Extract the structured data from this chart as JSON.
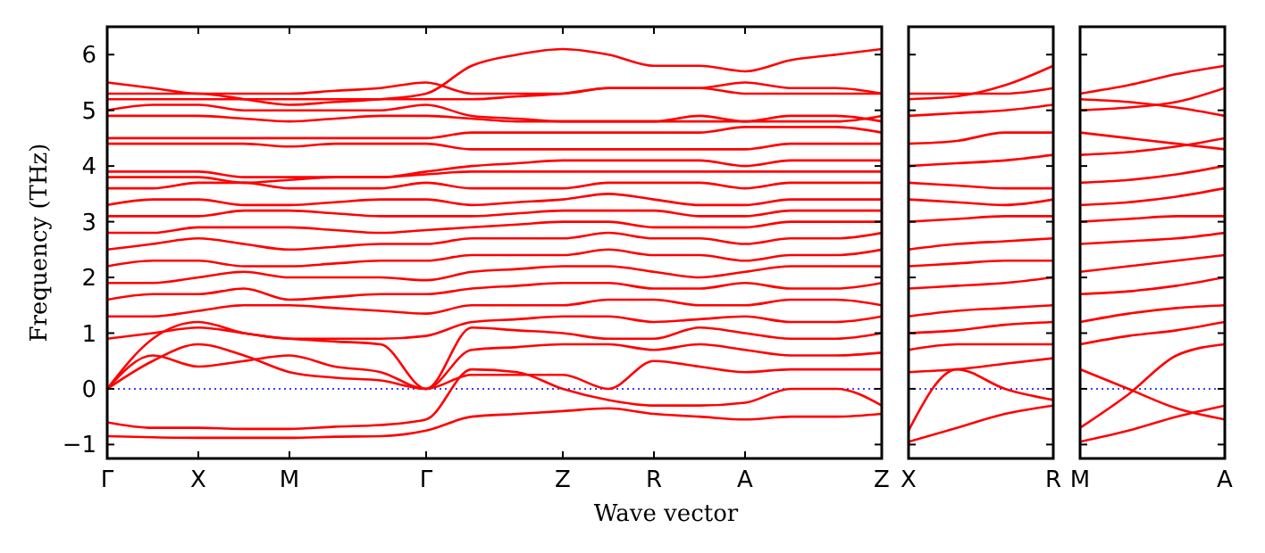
{
  "chart_data": [
    {
      "type": "line",
      "ylabel": "Frequency (THz)",
      "xlabel": "Wave vector",
      "ylim": [
        -1.25,
        6.5
      ],
      "categories": [
        "Γ",
        null,
        "X",
        null,
        "M",
        null,
        null,
        "Γ",
        null,
        null,
        "Z",
        null,
        "R",
        null,
        "A",
        null,
        null,
        "Z"
      ],
      "yticks": [
        {
          "value": -1,
          "label": "−1"
        },
        0,
        1,
        2,
        3,
        4,
        5,
        6
      ],
      "ref_lines": [
        {
          "axis": "y",
          "value": 0,
          "color": "#0000ff",
          "line_style": "dotted"
        }
      ],
      "series": [
        {
          "color": "#ff0000",
          "values": [
            -0.85,
            -0.87,
            -0.88,
            -0.88,
            -0.88,
            -0.86,
            -0.85,
            -0.75,
            -0.5,
            -0.45,
            -0.4,
            -0.35,
            -0.45,
            -0.5,
            -0.55,
            -0.5,
            -0.5,
            -0.45
          ]
        },
        {
          "color": "#ff0000",
          "values": [
            -0.6,
            -0.7,
            -0.7,
            -0.72,
            -0.72,
            -0.68,
            -0.65,
            -0.55,
            0.35,
            0.3,
            0,
            -0.2,
            -0.3,
            -0.3,
            -0.25,
            0,
            0,
            -0.3
          ]
        },
        {
          "color": "#ff0000",
          "values": [
            0,
            0.5,
            0.8,
            0.6,
            0.3,
            0.2,
            0.15,
            0,
            0.25,
            0.25,
            0.25,
            0,
            0.5,
            0.4,
            0.3,
            0.35,
            0.35,
            0.35
          ]
        },
        {
          "color": "#ff0000",
          "values": [
            0,
            0.6,
            0.4,
            0.5,
            0.6,
            0.4,
            0.3,
            0,
            0.7,
            0.75,
            0.8,
            0.8,
            0.7,
            0.8,
            0.7,
            0.6,
            0.6,
            0.65
          ]
        },
        {
          "color": "#ff0000",
          "values": [
            0,
            0.9,
            1.2,
            1,
            0.9,
            0.85,
            0.8,
            0,
            1.1,
            1.05,
            1,
            0.9,
            0.9,
            1.1,
            1,
            0.9,
            0.9,
            1
          ]
        },
        {
          "color": "#ff0000",
          "values": [
            0.9,
            1,
            1.1,
            1,
            0.9,
            0.9,
            0.9,
            0.95,
            1.2,
            1.25,
            1.3,
            1.3,
            1.2,
            1.25,
            1.3,
            1.2,
            1.2,
            1.3
          ]
        },
        {
          "color": "#ff0000",
          "values": [
            1.3,
            1.3,
            1.4,
            1.5,
            1.5,
            1.45,
            1.4,
            1.35,
            1.5,
            1.5,
            1.5,
            1.6,
            1.6,
            1.5,
            1.5,
            1.6,
            1.6,
            1.5
          ]
        },
        {
          "color": "#ff0000",
          "values": [
            1.6,
            1.7,
            1.7,
            1.8,
            1.6,
            1.65,
            1.7,
            1.7,
            1.8,
            1.85,
            1.9,
            1.9,
            1.8,
            1.8,
            1.9,
            1.8,
            1.8,
            1.9
          ]
        },
        {
          "color": "#ff0000",
          "values": [
            1.9,
            1.9,
            2,
            2.1,
            2,
            2,
            2,
            1.95,
            2.1,
            2.15,
            2.2,
            2.2,
            2.1,
            2,
            2.1,
            2.2,
            2.2,
            2.2
          ]
        },
        {
          "color": "#ff0000",
          "values": [
            2.2,
            2.3,
            2.3,
            2.2,
            2.2,
            2.25,
            2.3,
            2.3,
            2.4,
            2.4,
            2.4,
            2.5,
            2.4,
            2.4,
            2.3,
            2.4,
            2.4,
            2.5
          ]
        },
        {
          "color": "#ff0000",
          "values": [
            2.5,
            2.6,
            2.7,
            2.6,
            2.5,
            2.55,
            2.6,
            2.6,
            2.7,
            2.7,
            2.7,
            2.8,
            2.7,
            2.7,
            2.6,
            2.7,
            2.7,
            2.8
          ]
        },
        {
          "color": "#ff0000",
          "values": [
            2.8,
            2.8,
            2.9,
            2.9,
            2.9,
            2.85,
            2.8,
            2.85,
            2.9,
            2.95,
            3,
            3,
            2.9,
            2.9,
            2.9,
            3,
            3,
            3
          ]
        },
        {
          "color": "#ff0000",
          "values": [
            3.1,
            3.1,
            3.1,
            3.2,
            3.2,
            3.15,
            3.1,
            3.1,
            3.1,
            3.15,
            3.2,
            3.2,
            3.2,
            3.1,
            3.1,
            3.2,
            3.2,
            3.2
          ]
        },
        {
          "color": "#ff0000",
          "values": [
            3.3,
            3.4,
            3.4,
            3.3,
            3.3,
            3.35,
            3.4,
            3.4,
            3.3,
            3.35,
            3.4,
            3.5,
            3.4,
            3.3,
            3.3,
            3.4,
            3.4,
            3.4
          ]
        },
        {
          "color": "#ff0000",
          "values": [
            3.6,
            3.6,
            3.7,
            3.7,
            3.6,
            3.6,
            3.6,
            3.7,
            3.6,
            3.6,
            3.6,
            3.7,
            3.7,
            3.7,
            3.6,
            3.7,
            3.7,
            3.7
          ]
        },
        {
          "color": "#ff0000",
          "values": [
            3.8,
            3.8,
            3.8,
            3.7,
            3.75,
            3.8,
            3.8,
            3.85,
            3.9,
            3.9,
            3.9,
            3.9,
            3.9,
            3.9,
            3.9,
            3.9,
            3.9,
            3.9
          ]
        },
        {
          "color": "#ff0000",
          "values": [
            3.9,
            3.9,
            3.9,
            3.8,
            3.8,
            3.8,
            3.8,
            3.9,
            4,
            4.05,
            4.1,
            4.1,
            4.1,
            4.1,
            4,
            4.1,
            4.1,
            4.1
          ]
        },
        {
          "color": "#ff0000",
          "values": [
            4.4,
            4.4,
            4.4,
            4.4,
            4.35,
            4.4,
            4.4,
            4.4,
            4.3,
            4.3,
            4.3,
            4.3,
            4.3,
            4.3,
            4.3,
            4.4,
            4.4,
            4.4
          ]
        },
        {
          "color": "#ff0000",
          "values": [
            4.5,
            4.5,
            4.5,
            4.5,
            4.5,
            4.5,
            4.5,
            4.5,
            4.6,
            4.6,
            4.6,
            4.6,
            4.6,
            4.6,
            4.7,
            4.7,
            4.7,
            4.6
          ]
        },
        {
          "color": "#ff0000",
          "values": [
            4.9,
            4.9,
            4.9,
            4.85,
            4.8,
            4.85,
            4.9,
            4.9,
            4.85,
            4.8,
            4.8,
            4.8,
            4.8,
            4.8,
            4.8,
            4.8,
            4.8,
            4.9
          ]
        },
        {
          "color": "#ff0000",
          "values": [
            5,
            5.1,
            5.1,
            5,
            5,
            5,
            5,
            5.1,
            4.9,
            4.85,
            4.8,
            4.8,
            4.8,
            4.9,
            4.8,
            4.9,
            4.9,
            4.8
          ]
        },
        {
          "color": "#ff0000",
          "values": [
            5.2,
            5.2,
            5.2,
            5.2,
            5.2,
            5.2,
            5.2,
            5.2,
            5.2,
            5.25,
            5.3,
            5.4,
            5.4,
            5.4,
            5.3,
            5.3,
            5.3,
            5.3
          ]
        },
        {
          "color": "#ff0000",
          "values": [
            5.5,
            5.4,
            5.3,
            5.3,
            5.3,
            5.35,
            5.4,
            5.5,
            5.3,
            5.3,
            5.3,
            5.4,
            5.4,
            5.4,
            5.5,
            5.4,
            5.4,
            5.3
          ]
        },
        {
          "color": "#ff0000",
          "values": [
            5.3,
            5.3,
            5.3,
            5.2,
            5.1,
            5.15,
            5.2,
            5.3,
            5.8,
            6,
            6.1,
            6,
            5.8,
            5.8,
            5.7,
            5.9,
            6,
            6.1
          ]
        }
      ]
    },
    {
      "type": "line",
      "tick_labels": "x",
      "ylim": [
        -1.25,
        6.5
      ],
      "categories": [
        "X",
        null,
        null,
        "R"
      ],
      "yticks": [
        {
          "value": -1,
          "label": null
        },
        {
          "value": 0,
          "label": null
        },
        {
          "value": 1,
          "label": null
        },
        {
          "value": 2,
          "label": null
        },
        {
          "value": 3,
          "label": null
        },
        {
          "value": 4,
          "label": null
        },
        {
          "value": 5,
          "label": null
        },
        {
          "value": 6,
          "label": null
        }
      ],
      "ref_lines": [
        {
          "axis": "y",
          "value": 0,
          "color": "#0000ff",
          "line_style": "dotted"
        }
      ],
      "series": [
        {
          "color": "#ff0000",
          "values": [
            -0.75,
            0.35,
            0,
            -0.2
          ]
        },
        {
          "color": "#ff0000",
          "values": [
            -0.95,
            -0.7,
            -0.45,
            -0.3
          ]
        },
        {
          "color": "#ff0000",
          "values": [
            0.3,
            0.35,
            0.45,
            0.55
          ]
        },
        {
          "color": "#ff0000",
          "values": [
            0.7,
            0.8,
            0.8,
            0.8
          ]
        },
        {
          "color": "#ff0000",
          "values": [
            1,
            1.05,
            1.15,
            1.2
          ]
        },
        {
          "color": "#ff0000",
          "values": [
            1.3,
            1.4,
            1.45,
            1.5
          ]
        },
        {
          "color": "#ff0000",
          "values": [
            1.8,
            1.85,
            1.9,
            2
          ]
        },
        {
          "color": "#ff0000",
          "values": [
            2.2,
            2.25,
            2.3,
            2.3
          ]
        },
        {
          "color": "#ff0000",
          "values": [
            2.5,
            2.6,
            2.65,
            2.7
          ]
        },
        {
          "color": "#ff0000",
          "values": [
            3,
            3.05,
            3.1,
            3.1
          ]
        },
        {
          "color": "#ff0000",
          "values": [
            3.4,
            3.35,
            3.3,
            3.4
          ]
        },
        {
          "color": "#ff0000",
          "values": [
            3.7,
            3.65,
            3.6,
            3.6
          ]
        },
        {
          "color": "#ff0000",
          "values": [
            4,
            4.05,
            4.1,
            4.2
          ]
        },
        {
          "color": "#ff0000",
          "values": [
            4.4,
            4.45,
            4.6,
            4.6
          ]
        },
        {
          "color": "#ff0000",
          "values": [
            4.9,
            4.95,
            5,
            5.1
          ]
        },
        {
          "color": "#ff0000",
          "values": [
            5.2,
            5.25,
            5.45,
            5.8
          ]
        },
        {
          "color": "#ff0000",
          "values": [
            5.3,
            5.3,
            5.3,
            5.4
          ]
        }
      ]
    },
    {
      "type": "line",
      "tick_labels": "x",
      "ylim": [
        -1.25,
        6.5
      ],
      "categories": [
        "M",
        null,
        null,
        "A"
      ],
      "yticks": [
        {
          "value": -1,
          "label": null
        },
        {
          "value": 0,
          "label": null
        },
        {
          "value": 1,
          "label": null
        },
        {
          "value": 2,
          "label": null
        },
        {
          "value": 3,
          "label": null
        },
        {
          "value": 4,
          "label": null
        },
        {
          "value": 5,
          "label": null
        },
        {
          "value": 6,
          "label": null
        }
      ],
      "ref_lines": [
        {
          "axis": "y",
          "value": 0,
          "color": "#0000ff",
          "line_style": "dotted"
        }
      ],
      "series": [
        {
          "color": "#ff0000",
          "values": [
            -0.7,
            -0.1,
            0.6,
            0.8
          ]
        },
        {
          "color": "#ff0000",
          "values": [
            -0.95,
            -0.75,
            -0.5,
            -0.3
          ]
        },
        {
          "color": "#ff0000",
          "values": [
            0.35,
            0,
            -0.35,
            -0.55
          ]
        },
        {
          "color": "#ff0000",
          "values": [
            0.8,
            0.95,
            1.05,
            1.2
          ]
        },
        {
          "color": "#ff0000",
          "values": [
            1.2,
            1.35,
            1.45,
            1.5
          ]
        },
        {
          "color": "#ff0000",
          "values": [
            1.7,
            1.75,
            1.85,
            2
          ]
        },
        {
          "color": "#ff0000",
          "values": [
            2.1,
            2.2,
            2.3,
            2.4
          ]
        },
        {
          "color": "#ff0000",
          "values": [
            2.6,
            2.65,
            2.7,
            2.8
          ]
        },
        {
          "color": "#ff0000",
          "values": [
            3,
            3.05,
            3.1,
            3.1
          ]
        },
        {
          "color": "#ff0000",
          "values": [
            3.3,
            3.35,
            3.45,
            3.6
          ]
        },
        {
          "color": "#ff0000",
          "values": [
            3.7,
            3.75,
            3.85,
            4
          ]
        },
        {
          "color": "#ff0000",
          "values": [
            4.2,
            4.25,
            4.35,
            4.5
          ]
        },
        {
          "color": "#ff0000",
          "values": [
            4.6,
            4.5,
            4.4,
            4.3
          ]
        },
        {
          "color": "#ff0000",
          "values": [
            5,
            5.05,
            5.15,
            5.4
          ]
        },
        {
          "color": "#ff0000",
          "values": [
            5.3,
            5.45,
            5.65,
            5.8
          ]
        },
        {
          "color": "#ff0000",
          "values": [
            5.2,
            5.15,
            5.05,
            4.9
          ]
        }
      ]
    }
  ]
}
